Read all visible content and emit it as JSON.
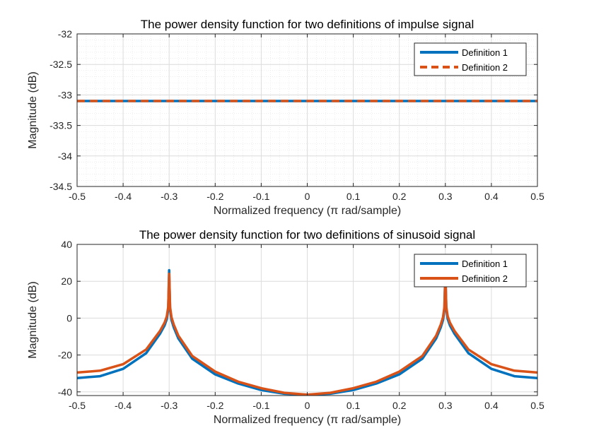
{
  "chart_data": [
    {
      "type": "line",
      "title": "The power density function for two definitions of impulse signal",
      "xlabel": "Normalized frequency (π rad/sample)",
      "ylabel": "Magnitude (dB)",
      "xlim": [
        -0.5,
        0.5
      ],
      "ylim": [
        -34.5,
        -32
      ],
      "xticks": [
        -0.5,
        -0.4,
        -0.3,
        -0.2,
        -0.1,
        0,
        0.1,
        0.2,
        0.3,
        0.4,
        0.5
      ],
      "xtick_labels": [
        "-0.5",
        "-0.4",
        "-0.3",
        "-0.2",
        "-0.1",
        "0",
        "0.1",
        "0.2",
        "0.3",
        "0.4",
        "0.5"
      ],
      "yticks": [
        -34.5,
        -34,
        -33.5,
        -33,
        -32.5,
        -32
      ],
      "ytick_labels": [
        "-34.5",
        "-34",
        "-33.5",
        "-33",
        "-32.5",
        "-32"
      ],
      "grid": true,
      "minor_grid": true,
      "legend_position": "top-right",
      "series": [
        {
          "name": "Definition 1",
          "color": "#0072BD",
          "style": "solid",
          "x": [
            -0.5,
            0.5
          ],
          "y": [
            -33.1,
            -33.1
          ]
        },
        {
          "name": "Definition 2",
          "color": "#D95319",
          "style": "dashed",
          "x": [
            -0.5,
            0.5
          ],
          "y": [
            -33.1,
            -33.1
          ]
        }
      ]
    },
    {
      "type": "line",
      "title": "The power density function for two definitions of sinusoid signal",
      "xlabel": "Normalized frequency (π rad/sample)",
      "ylabel": "Magnitude (dB)",
      "xlim": [
        -0.5,
        0.5
      ],
      "ylim": [
        -42,
        40
      ],
      "xticks": [
        -0.5,
        -0.4,
        -0.3,
        -0.2,
        -0.1,
        0,
        0.1,
        0.2,
        0.3,
        0.4,
        0.5
      ],
      "xtick_labels": [
        "-0.5",
        "-0.4",
        "-0.3",
        "-0.2",
        "-0.1",
        "0",
        "0.1",
        "0.2",
        "0.3",
        "0.4",
        "0.5"
      ],
      "yticks": [
        -40,
        -20,
        0,
        20,
        40
      ],
      "ytick_labels": [
        "-40",
        "-20",
        "0",
        "20",
        "40"
      ],
      "grid": true,
      "minor_grid": false,
      "legend_position": "top-right",
      "series": [
        {
          "name": "Definition 1",
          "color": "#0072BD",
          "style": "solid",
          "x": [
            -0.5,
            -0.45,
            -0.4,
            -0.35,
            -0.32,
            -0.31,
            -0.305,
            -0.302,
            -0.3,
            -0.298,
            -0.295,
            -0.29,
            -0.28,
            -0.25,
            -0.2,
            -0.15,
            -0.1,
            -0.05,
            0,
            0.05,
            0.1,
            0.15,
            0.2,
            0.25,
            0.28,
            0.29,
            0.295,
            0.298,
            0.3,
            0.302,
            0.305,
            0.31,
            0.32,
            0.35,
            0.4,
            0.45,
            0.5
          ],
          "y": [
            -32.5,
            -31.5,
            -27.5,
            -19,
            -8.5,
            -4,
            -0.5,
            5,
            26,
            5,
            -1,
            -5,
            -11,
            -22,
            -30.5,
            -35.5,
            -39,
            -41,
            -41.5,
            -41,
            -39,
            -35.5,
            -30.5,
            -22,
            -11,
            -5,
            -1,
            5,
            26,
            5,
            -0.5,
            -4,
            -8.5,
            -19,
            -27.5,
            -31.5,
            -32.5
          ]
        },
        {
          "name": "Definition 2",
          "color": "#D95319",
          "style": "solid",
          "x": [
            -0.5,
            -0.45,
            -0.4,
            -0.35,
            -0.32,
            -0.31,
            -0.305,
            -0.302,
            -0.3,
            -0.298,
            -0.295,
            -0.29,
            -0.28,
            -0.25,
            -0.2,
            -0.15,
            -0.1,
            -0.05,
            0,
            0.05,
            0.1,
            0.15,
            0.2,
            0.25,
            0.28,
            0.29,
            0.295,
            0.298,
            0.3,
            0.302,
            0.305,
            0.31,
            0.32,
            0.35,
            0.4,
            0.45,
            0.5
          ],
          "y": [
            -29.5,
            -28.5,
            -25,
            -17,
            -7,
            -2.5,
            1,
            6,
            24,
            6,
            0.5,
            -3.5,
            -9.5,
            -20.5,
            -29,
            -34.5,
            -38,
            -40.5,
            -41.5,
            -40.5,
            -38,
            -34.5,
            -29,
            -20.5,
            -9.5,
            -3.5,
            0.5,
            6,
            24,
            6,
            1,
            -2.5,
            -7,
            -17,
            -25,
            -28.5,
            -29.5
          ]
        }
      ]
    }
  ]
}
